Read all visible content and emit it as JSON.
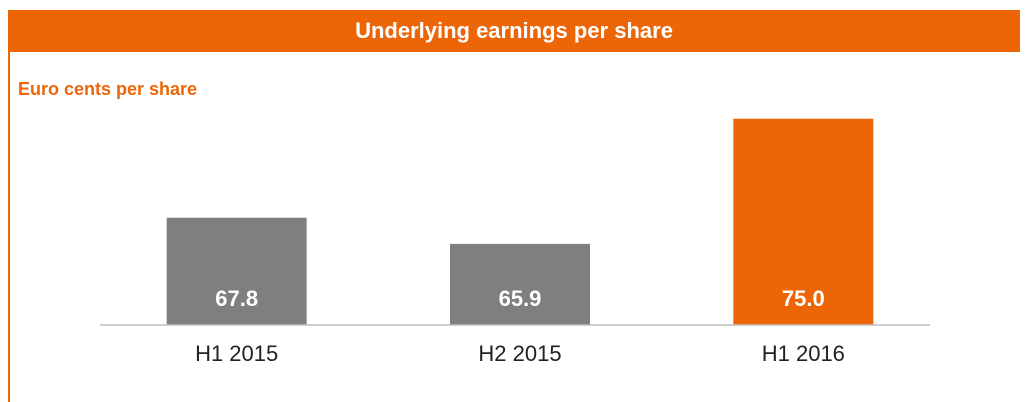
{
  "chart_data": {
    "type": "bar",
    "title": "Underlying earnings per share",
    "y_label": "Euro cents per share",
    "categories": [
      "H1 2015",
      "H2 2015",
      "H1 2016"
    ],
    "values": [
      67.8,
      65.9,
      75.0
    ],
    "value_labels": [
      "67.8",
      "65.9",
      "75.0"
    ],
    "colors": [
      "#7f7f7f",
      "#7f7f7f",
      "#ec6608"
    ],
    "ylim": [
      60,
      76
    ]
  }
}
